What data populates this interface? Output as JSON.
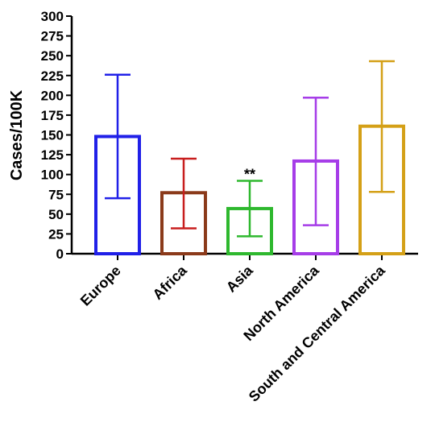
{
  "chart_data": {
    "type": "bar",
    "ylabel": "Cases/100K",
    "xlabel": "",
    "ylim": [
      0,
      300
    ],
    "yticks": [
      "0",
      "25",
      "50",
      "75",
      "100",
      "125",
      "150",
      "175",
      "200",
      "225",
      "250",
      "275",
      "300"
    ],
    "categories": [
      "Europe",
      "Africa",
      "Asia",
      "North America",
      "South and Central America"
    ],
    "values": [
      148,
      77,
      57,
      117,
      161
    ],
    "error_low": [
      70,
      32,
      22,
      36,
      78
    ],
    "error_high": [
      226,
      120,
      92,
      197,
      243
    ],
    "colors": [
      "#2020e8",
      "#8b3a1a",
      "#2eb82e",
      "#a63de8",
      "#d4a017"
    ],
    "error_colors": [
      "#2020e8",
      "#c81e1e",
      "#2eb82e",
      "#a63de8",
      "#d4a017"
    ],
    "annotations": [
      {
        "category": "Asia",
        "text": "**"
      }
    ],
    "grid": false,
    "legend": "none"
  }
}
